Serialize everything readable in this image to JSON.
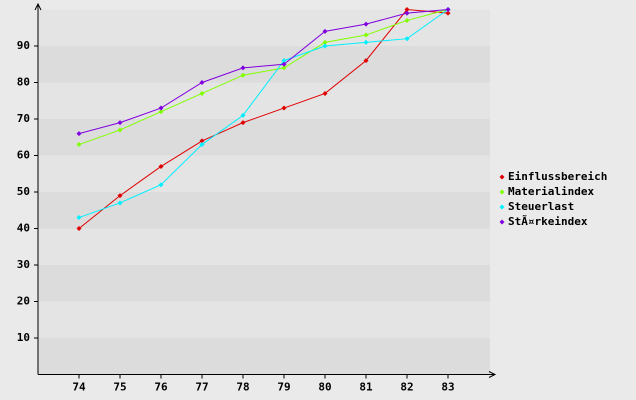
{
  "chart_data": {
    "type": "line",
    "categories": [
      "74",
      "75",
      "76",
      "77",
      "78",
      "79",
      "80",
      "81",
      "82",
      "83"
    ],
    "series": [
      {
        "name": "Einflussbereich",
        "color": "#e00000",
        "values": [
          40,
          49,
          57,
          64,
          69,
          73,
          77,
          86,
          100,
          99
        ]
      },
      {
        "name": "Materialindex",
        "color": "#80ff00",
        "values": [
          63,
          67,
          72,
          77,
          82,
          84,
          91,
          93,
          97,
          100
        ]
      },
      {
        "name": "Steuerlast",
        "color": "#00f0ff",
        "values": [
          43,
          47,
          52,
          63,
          71,
          86,
          90,
          91,
          92,
          100
        ]
      },
      {
        "name": "StÃ¤rkeindex",
        "color": "#8000e0",
        "values": [
          66,
          69,
          73,
          80,
          84,
          85,
          94,
          96,
          99,
          100
        ]
      }
    ],
    "ylim": [
      0,
      100
    ],
    "yticks": [
      10,
      20,
      30,
      40,
      50,
      60,
      70,
      80,
      90
    ],
    "grid": true,
    "legend": "right"
  }
}
